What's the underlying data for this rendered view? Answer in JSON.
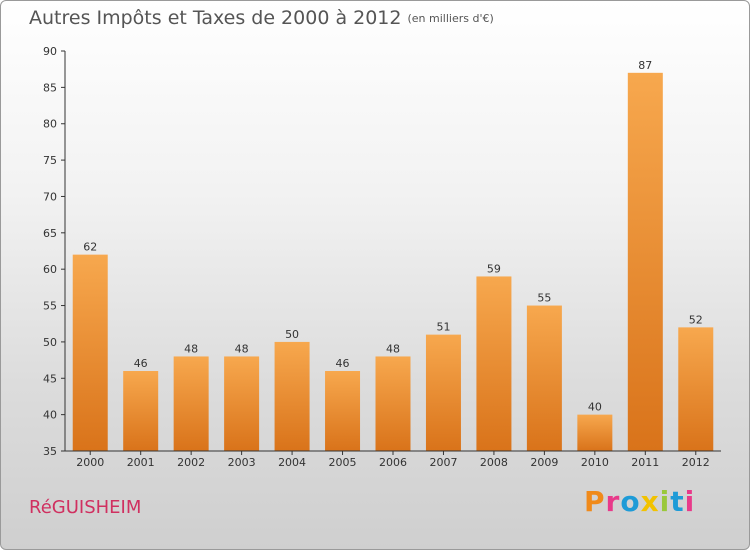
{
  "header": {
    "title": "Autres Impôts et Taxes de 2000 à 2012",
    "unit": "(en milliers d'€)"
  },
  "footer": {
    "city": "RéGUISHEIM",
    "logo_letters": [
      "P",
      "r",
      "o",
      "x",
      "i",
      "t",
      "i"
    ]
  },
  "colors": {
    "bar_top": "#f7a84e",
    "bar_bottom": "#d9731a",
    "city": "#d03060",
    "logo": [
      "#f08a1a",
      "#e83a8a",
      "#1e9bd7",
      "#f2c200",
      "#9ac83a",
      "#1e9bd7",
      "#e83a8a"
    ]
  },
  "chart_data": {
    "type": "bar",
    "title": "Autres Impôts et Taxes de 2000 à 2012",
    "categories": [
      "2000",
      "2001",
      "2002",
      "2003",
      "2004",
      "2005",
      "2006",
      "2007",
      "2008",
      "2009",
      "2010",
      "2011",
      "2012"
    ],
    "values": [
      62,
      46,
      48,
      48,
      50,
      46,
      48,
      51,
      59,
      55,
      40,
      87,
      52
    ],
    "ylim": [
      35,
      90
    ],
    "yticks": [
      35,
      40,
      45,
      50,
      55,
      60,
      65,
      70,
      75,
      80,
      85,
      90
    ],
    "xlabel": "",
    "ylabel": "",
    "grid": false,
    "data_labels": true
  }
}
